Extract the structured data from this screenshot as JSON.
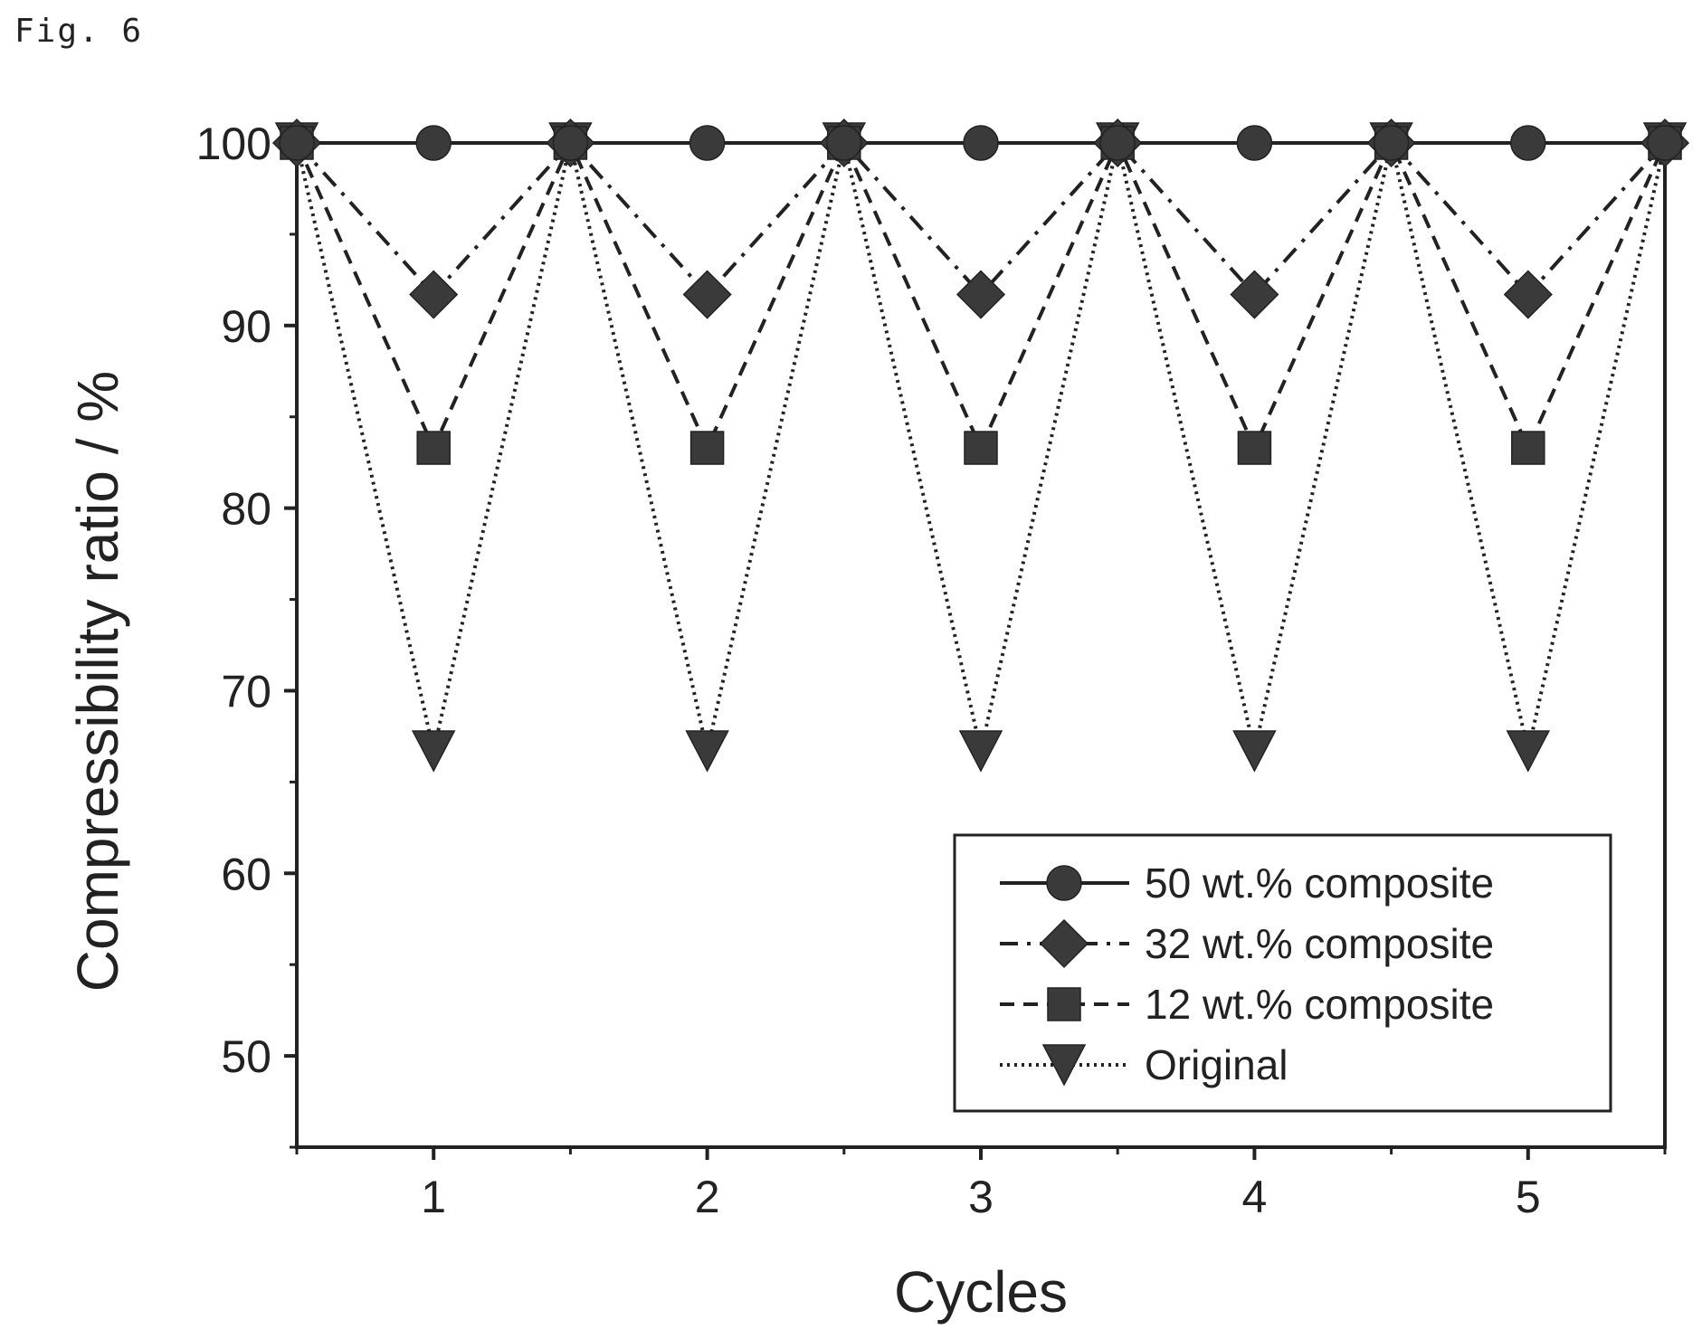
{
  "figure_label": "Fig. 6",
  "chart_data": {
    "type": "line",
    "title": "",
    "xlabel": "Cycles",
    "ylabel": "Compressibility ratio / %",
    "x": [
      0.5,
      1,
      1.5,
      2,
      2.5,
      3,
      3.5,
      4,
      4.5,
      5,
      5.5
    ],
    "xlim": [
      0.5,
      5.5
    ],
    "ylim": [
      45,
      100
    ],
    "xticks": [
      1,
      2,
      3,
      4,
      5
    ],
    "yticks": [
      50,
      60,
      70,
      80,
      90,
      100
    ],
    "grid": false,
    "legend_position": "bottom-right",
    "series": [
      {
        "name": "50 wt.% composite",
        "marker": "circle",
        "dash": "solid",
        "values": [
          100,
          100,
          100,
          100,
          100,
          100,
          100,
          100,
          100,
          100,
          100
        ]
      },
      {
        "name": "32 wt.% composite",
        "marker": "diamond",
        "dash": "dashdot",
        "values": [
          100,
          91.7,
          100,
          91.7,
          100,
          91.7,
          100,
          91.7,
          100,
          91.7,
          100
        ]
      },
      {
        "name": "12 wt.% composite",
        "marker": "square",
        "dash": "dash",
        "values": [
          100,
          83.3,
          100,
          83.3,
          100,
          83.3,
          100,
          83.3,
          100,
          83.3,
          100
        ]
      },
      {
        "name": "Original",
        "marker": "triangle-down",
        "dash": "dot",
        "values": [
          100,
          66.7,
          100,
          66.7,
          100,
          66.7,
          100,
          66.7,
          100,
          66.7,
          100
        ]
      }
    ],
    "colors": {
      "ink": "#222222",
      "marker": "#3a3a3a"
    }
  }
}
